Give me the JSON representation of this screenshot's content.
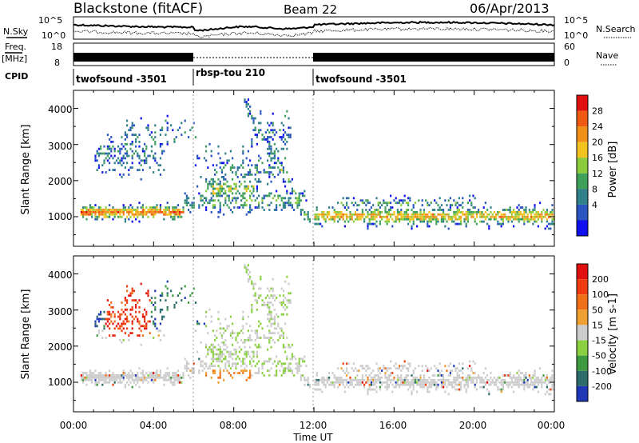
{
  "header": {
    "station": "Blackstone (fitACF)",
    "beam": "Beam 22",
    "date": "06/Apr/2013"
  },
  "strip": {
    "nsky_label": "N.Sky",
    "nsky_ticks": [
      "10^5",
      "10^0"
    ],
    "nsearch_label": "N.Search",
    "nsearch_ticks": [
      "10^5",
      "10^0"
    ],
    "freq_label": "Freq.",
    "freq_unit": "[MHz]",
    "freq_ticks": [
      "18",
      "8"
    ],
    "nave_label": "Nave",
    "nave_ticks": [
      "60",
      "0"
    ],
    "cpid_label": "CPID"
  },
  "cpid_segments": [
    {
      "start_hour": 0,
      "end_hour": 6,
      "name": "twofsound -3501"
    },
    {
      "start_hour": 6,
      "end_hour": 12,
      "name": "rbsp-tou 210"
    },
    {
      "start_hour": 12,
      "end_hour": 24,
      "name": "twofsound -3501"
    }
  ],
  "chart_data": [
    {
      "type": "heatmap",
      "panel": "power",
      "ylabel": "Slant Range [km]",
      "yticks": [
        "1000",
        "2000",
        "3000",
        "4000"
      ],
      "ylim": [
        180,
        4500
      ],
      "xlim": [
        0,
        24
      ],
      "colorbar_label": "Power [dB]",
      "colorbar_ticks": [
        "4",
        "8",
        "12",
        "16",
        "20",
        "24",
        "28"
      ],
      "colors": [
        "#1010ee",
        "#2a55c0",
        "#30808a",
        "#3fa05a",
        "#8ccc3c",
        "#f2c21e",
        "#f09018",
        "#ee5a12",
        "#e01010"
      ]
    },
    {
      "type": "heatmap",
      "panel": "velocity",
      "ylabel": "Slant Range [km]",
      "yticks": [
        "1000",
        "2000",
        "3000",
        "4000"
      ],
      "ylim": [
        180,
        4500
      ],
      "xlim": [
        0,
        24
      ],
      "xlabel": "Time UT",
      "xticks": [
        "00:00",
        "04:00",
        "08:00",
        "12:00",
        "16:00",
        "20:00",
        "00:00"
      ],
      "colorbar_label": "Velocity [m s-1]",
      "colorbar_ticks": [
        "200",
        "100",
        "50",
        "15",
        "-15",
        "-50",
        "-100",
        "-200"
      ],
      "colors": [
        "#2038b8",
        "#2e6c6c",
        "#3e9a3e",
        "#8ad040",
        "#cccccc",
        "#f0a030",
        "#f07018",
        "#ee3c10",
        "#e01010"
      ]
    }
  ]
}
